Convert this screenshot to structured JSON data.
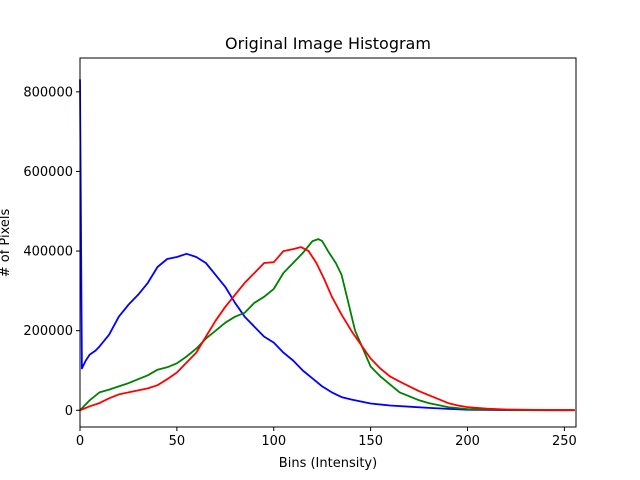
{
  "chart_data": {
    "type": "line",
    "title": "Original Image Histogram",
    "xlabel": "Bins (Intensity)",
    "ylabel": "# of Pixels",
    "xlim": [
      0,
      256
    ],
    "ylim": [
      -42000,
      885000
    ],
    "xticks": [
      0,
      50,
      100,
      150,
      200,
      250
    ],
    "yticks": [
      0,
      200000,
      400000,
      600000,
      800000
    ],
    "xtick_labels": [
      "0",
      "50",
      "100",
      "150",
      "200",
      "250"
    ],
    "ytick_labels": [
      "0",
      "200000",
      "400000",
      "600000",
      "800000"
    ],
    "grid": false,
    "series": [
      {
        "color": "#0000ff",
        "points": [
          [
            0,
            830000
          ],
          [
            1,
            105000
          ],
          [
            3,
            125000
          ],
          [
            5,
            140000
          ],
          [
            8,
            150000
          ],
          [
            10,
            160000
          ],
          [
            15,
            190000
          ],
          [
            20,
            235000
          ],
          [
            25,
            265000
          ],
          [
            30,
            290000
          ],
          [
            35,
            320000
          ],
          [
            40,
            360000
          ],
          [
            45,
            380000
          ],
          [
            50,
            385000
          ],
          [
            55,
            393000
          ],
          [
            60,
            385000
          ],
          [
            65,
            370000
          ],
          [
            70,
            340000
          ],
          [
            75,
            310000
          ],
          [
            80,
            270000
          ],
          [
            85,
            235000
          ],
          [
            90,
            210000
          ],
          [
            95,
            185000
          ],
          [
            100,
            170000
          ],
          [
            105,
            145000
          ],
          [
            110,
            125000
          ],
          [
            115,
            100000
          ],
          [
            120,
            80000
          ],
          [
            125,
            60000
          ],
          [
            130,
            45000
          ],
          [
            135,
            33000
          ],
          [
            140,
            27000
          ],
          [
            145,
            22000
          ],
          [
            150,
            17000
          ],
          [
            160,
            12000
          ],
          [
            170,
            9000
          ],
          [
            180,
            6000
          ],
          [
            190,
            3500
          ],
          [
            200,
            1500
          ],
          [
            220,
            500
          ],
          [
            240,
            200
          ],
          [
            255,
            100
          ]
        ]
      },
      {
        "color": "#008000",
        "points": [
          [
            0,
            0
          ],
          [
            5,
            25000
          ],
          [
            10,
            45000
          ],
          [
            15,
            52000
          ],
          [
            20,
            60000
          ],
          [
            25,
            68000
          ],
          [
            30,
            78000
          ],
          [
            35,
            88000
          ],
          [
            40,
            102000
          ],
          [
            45,
            108000
          ],
          [
            50,
            118000
          ],
          [
            55,
            135000
          ],
          [
            60,
            155000
          ],
          [
            65,
            180000
          ],
          [
            70,
            200000
          ],
          [
            75,
            220000
          ],
          [
            80,
            235000
          ],
          [
            85,
            245000
          ],
          [
            90,
            270000
          ],
          [
            95,
            285000
          ],
          [
            100,
            305000
          ],
          [
            105,
            345000
          ],
          [
            110,
            370000
          ],
          [
            115,
            395000
          ],
          [
            120,
            425000
          ],
          [
            123,
            430000
          ],
          [
            125,
            425000
          ],
          [
            128,
            400000
          ],
          [
            132,
            370000
          ],
          [
            135,
            340000
          ],
          [
            138,
            280000
          ],
          [
            142,
            200000
          ],
          [
            146,
            155000
          ],
          [
            150,
            110000
          ],
          [
            155,
            85000
          ],
          [
            160,
            65000
          ],
          [
            165,
            45000
          ],
          [
            170,
            35000
          ],
          [
            175,
            25000
          ],
          [
            180,
            18000
          ],
          [
            190,
            8000
          ],
          [
            200,
            3000
          ],
          [
            220,
            1000
          ],
          [
            240,
            300
          ],
          [
            255,
            200
          ]
        ]
      },
      {
        "color": "#ff0000",
        "points": [
          [
            0,
            0
          ],
          [
            5,
            10000
          ],
          [
            10,
            18000
          ],
          [
            15,
            30000
          ],
          [
            20,
            40000
          ],
          [
            25,
            45000
          ],
          [
            30,
            50000
          ],
          [
            35,
            55000
          ],
          [
            40,
            63000
          ],
          [
            45,
            78000
          ],
          [
            50,
            95000
          ],
          [
            55,
            120000
          ],
          [
            60,
            145000
          ],
          [
            65,
            185000
          ],
          [
            70,
            225000
          ],
          [
            75,
            260000
          ],
          [
            80,
            290000
          ],
          [
            85,
            320000
          ],
          [
            90,
            345000
          ],
          [
            95,
            370000
          ],
          [
            100,
            372000
          ],
          [
            105,
            400000
          ],
          [
            110,
            405000
          ],
          [
            114,
            410000
          ],
          [
            118,
            400000
          ],
          [
            122,
            370000
          ],
          [
            126,
            330000
          ],
          [
            130,
            285000
          ],
          [
            135,
            240000
          ],
          [
            140,
            200000
          ],
          [
            145,
            165000
          ],
          [
            150,
            130000
          ],
          [
            155,
            105000
          ],
          [
            160,
            85000
          ],
          [
            165,
            72000
          ],
          [
            170,
            60000
          ],
          [
            175,
            48000
          ],
          [
            180,
            38000
          ],
          [
            185,
            28000
          ],
          [
            190,
            18000
          ],
          [
            195,
            12000
          ],
          [
            200,
            8000
          ],
          [
            210,
            4000
          ],
          [
            220,
            2000
          ],
          [
            240,
            800
          ],
          [
            255,
            500
          ]
        ]
      }
    ]
  }
}
